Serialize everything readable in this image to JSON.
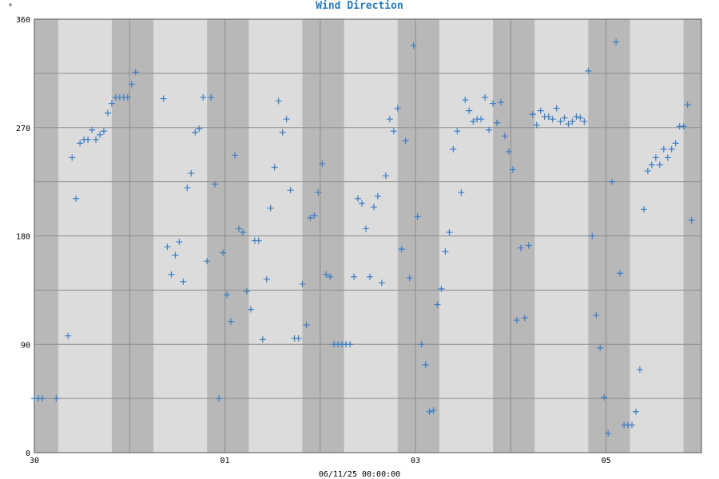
{
  "chart_data": {
    "type": "scatter",
    "title": "Wind Direction",
    "unit_label": "°",
    "xlabel": "06/11/25 00:00:00",
    "ylim": [
      0,
      360
    ],
    "xlim": [
      0,
      168
    ],
    "y_ticks": [
      0,
      90,
      180,
      270,
      360
    ],
    "y_gridlines": [
      0,
      45,
      90,
      135,
      180,
      225,
      270,
      315,
      360
    ],
    "x_tick_labels": [
      {
        "x": 0,
        "label": "30"
      },
      {
        "x": 48,
        "label": "01"
      },
      {
        "x": 96,
        "label": "03"
      },
      {
        "x": 144,
        "label": "05"
      }
    ],
    "x_gridlines": [
      0,
      24,
      48,
      72,
      96,
      120,
      144,
      168
    ],
    "marker": "+",
    "series_color": "#3a7cc4",
    "band_colors": {
      "light": "#dcdcdc",
      "dark": "#b8b8b8"
    },
    "dark_bands": [
      [
        0,
        6
      ],
      [
        19.5,
        30
      ],
      [
        43.5,
        54
      ],
      [
        67.5,
        78
      ],
      [
        91.5,
        102
      ],
      [
        115.5,
        126
      ],
      [
        139.5,
        150
      ],
      [
        163.5,
        168
      ]
    ],
    "points": [
      [
        0,
        45
      ],
      [
        1,
        45
      ],
      [
        2,
        45
      ],
      [
        5.5,
        45
      ],
      [
        8.5,
        97
      ],
      [
        9.5,
        245
      ],
      [
        10.5,
        211
      ],
      [
        11.5,
        257
      ],
      [
        12.5,
        260
      ],
      [
        13.5,
        260
      ],
      [
        14.5,
        268
      ],
      [
        15.5,
        260
      ],
      [
        16.5,
        264
      ],
      [
        17.5,
        267
      ],
      [
        18.5,
        282
      ],
      [
        19.5,
        290
      ],
      [
        20.5,
        295
      ],
      [
        21.5,
        295
      ],
      [
        22.5,
        295
      ],
      [
        23.5,
        295
      ],
      [
        24.5,
        306
      ],
      [
        25.5,
        316
      ],
      [
        32.5,
        294
      ],
      [
        33.5,
        171
      ],
      [
        34.5,
        148
      ],
      [
        35.5,
        164
      ],
      [
        36.5,
        175
      ],
      [
        37.5,
        142
      ],
      [
        38.5,
        220
      ],
      [
        39.5,
        232
      ],
      [
        40.5,
        266
      ],
      [
        41.5,
        269
      ],
      [
        42.5,
        295
      ],
      [
        43.5,
        159
      ],
      [
        44.5,
        295
      ],
      [
        45.5,
        223
      ],
      [
        46.5,
        45
      ],
      [
        47.5,
        166
      ],
      [
        48.5,
        131
      ],
      [
        49.5,
        109
      ],
      [
        50.5,
        247
      ],
      [
        51.5,
        186
      ],
      [
        52.5,
        183
      ],
      [
        53.5,
        134
      ],
      [
        54.5,
        119
      ],
      [
        55.5,
        176
      ],
      [
        56.5,
        176
      ],
      [
        57.5,
        94
      ],
      [
        58.5,
        144
      ],
      [
        59.5,
        203
      ],
      [
        60.5,
        237
      ],
      [
        61.5,
        292
      ],
      [
        62.5,
        266
      ],
      [
        63.5,
        277
      ],
      [
        64.5,
        218
      ],
      [
        65.5,
        95
      ],
      [
        66.5,
        95
      ],
      [
        67.5,
        140
      ],
      [
        68.5,
        106
      ],
      [
        69.5,
        195
      ],
      [
        70.5,
        197
      ],
      [
        71.5,
        216
      ],
      [
        72.5,
        240
      ],
      [
        73.5,
        148
      ],
      [
        74.5,
        146
      ],
      [
        75.5,
        90
      ],
      [
        76.5,
        90
      ],
      [
        77.5,
        90
      ],
      [
        78.5,
        90
      ],
      [
        79.5,
        90
      ],
      [
        80.5,
        146
      ],
      [
        81.5,
        211
      ],
      [
        82.5,
        207
      ],
      [
        83.5,
        186
      ],
      [
        84.5,
        146
      ],
      [
        85.5,
        204
      ],
      [
        86.5,
        213
      ],
      [
        87.5,
        141
      ],
      [
        88.5,
        230
      ],
      [
        89.5,
        277
      ],
      [
        90.5,
        267
      ],
      [
        91.5,
        286
      ],
      [
        92.5,
        169
      ],
      [
        93.5,
        259
      ],
      [
        94.5,
        145
      ],
      [
        95.5,
        338
      ],
      [
        96.5,
        196
      ],
      [
        97.5,
        90
      ],
      [
        98.5,
        73
      ],
      [
        99.5,
        34
      ],
      [
        100.5,
        35
      ],
      [
        101.5,
        123
      ],
      [
        102.5,
        136
      ],
      [
        103.5,
        167
      ],
      [
        104.5,
        183
      ],
      [
        105.5,
        252
      ],
      [
        106.5,
        267
      ],
      [
        107.5,
        216
      ],
      [
        108.5,
        293
      ],
      [
        109.5,
        284
      ],
      [
        110.5,
        275
      ],
      [
        111.5,
        277
      ],
      [
        112.5,
        277
      ],
      [
        113.5,
        295
      ],
      [
        114.5,
        268
      ],
      [
        115.5,
        290
      ],
      [
        116.5,
        274
      ],
      [
        117.5,
        291
      ],
      [
        118.5,
        263
      ],
      [
        119.5,
        250
      ],
      [
        120.5,
        235
      ],
      [
        121.5,
        110
      ],
      [
        122.5,
        170
      ],
      [
        123.5,
        112
      ],
      [
        124.5,
        172
      ],
      [
        125.5,
        281
      ],
      [
        126.5,
        272
      ],
      [
        127.5,
        284
      ],
      [
        128.5,
        279
      ],
      [
        129.5,
        279
      ],
      [
        130.5,
        277
      ],
      [
        131.5,
        286
      ],
      [
        132.5,
        275
      ],
      [
        133.5,
        278
      ],
      [
        134.5,
        273
      ],
      [
        135.5,
        275
      ],
      [
        136.5,
        279
      ],
      [
        137.5,
        278
      ],
      [
        138.5,
        275
      ],
      [
        139.5,
        317
      ],
      [
        140.5,
        180
      ],
      [
        141.5,
        114
      ],
      [
        142.5,
        87
      ],
      [
        143.5,
        46
      ],
      [
        144.5,
        16
      ],
      [
        145.5,
        225
      ],
      [
        146.5,
        341
      ],
      [
        147.5,
        149
      ],
      [
        148.5,
        23
      ],
      [
        149.5,
        23
      ],
      [
        150.5,
        23
      ],
      [
        151.5,
        34
      ],
      [
        152.5,
        69
      ],
      [
        153.5,
        202
      ],
      [
        154.5,
        234
      ],
      [
        155.5,
        239
      ],
      [
        156.5,
        245
      ],
      [
        157.5,
        239
      ],
      [
        158.5,
        252
      ],
      [
        159.5,
        245
      ],
      [
        160.5,
        252
      ],
      [
        161.5,
        257
      ],
      [
        162.5,
        271
      ],
      [
        163.5,
        271
      ],
      [
        164.5,
        289
      ],
      [
        165.5,
        193
      ]
    ]
  }
}
